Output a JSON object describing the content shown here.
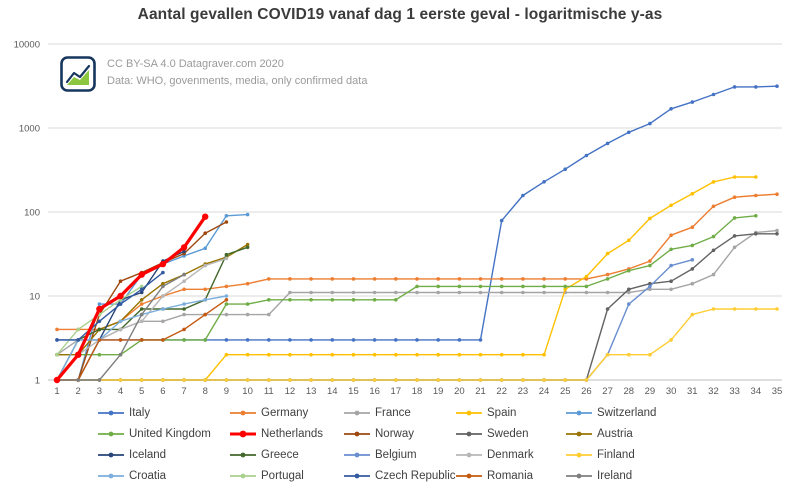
{
  "page": {
    "title": "Aantal gevallen COVID19 vanaf dag 1 eerste geval - logaritmische y-as"
  },
  "watermark": {
    "logo": "datagraver-logo",
    "license_line": "CC BY-SA 4.0  Datagraver.com 2020",
    "source_line": "Data: WHO, govenments, media, only confirmed data"
  },
  "chart_data": {
    "type": "line",
    "title": "Aantal gevallen COVID19 vanaf dag 1 eerste geval - logaritmische y-as",
    "xlabel": "",
    "ylabel": "",
    "y_scale": "log",
    "grid": "horizontal",
    "legend_position": "bottom",
    "x_range": [
      1,
      35
    ],
    "y_range": [
      1,
      10000
    ],
    "y_ticks": [
      1,
      10,
      100,
      1000,
      10000
    ],
    "x_ticks": [
      1,
      2,
      3,
      4,
      5,
      6,
      7,
      8,
      9,
      10,
      11,
      12,
      13,
      14,
      15,
      16,
      17,
      18,
      19,
      20,
      21,
      22,
      23,
      24,
      25,
      26,
      27,
      28,
      29,
      30,
      31,
      32,
      33,
      34,
      35
    ],
    "series": [
      {
        "name": "Italy",
        "color": "#4472C4",
        "emphasis": false,
        "values": [
          3,
          3,
          3,
          3,
          3,
          3,
          3,
          3,
          3,
          3,
          3,
          3,
          3,
          3,
          3,
          3,
          3,
          3,
          3,
          3,
          3,
          79,
          157,
          229,
          323,
          470,
          655,
          889,
          1128,
          1694,
          2036,
          2502,
          3089,
          3089,
          3144
        ]
      },
      {
        "name": "Germany",
        "color": "#ED7D31",
        "emphasis": false,
        "values": [
          4,
          4,
          4,
          5,
          8,
          10,
          12,
          12,
          13,
          14,
          16,
          16,
          16,
          16,
          16,
          16,
          16,
          16,
          16,
          16,
          16,
          16,
          16,
          16,
          16,
          16,
          18,
          21,
          26,
          53,
          66,
          117,
          150,
          157,
          163
        ]
      },
      {
        "name": "France",
        "color": "#A5A5A5",
        "emphasis": false,
        "values": [
          2,
          3,
          3,
          4,
          5,
          5,
          6,
          6,
          6,
          6,
          6,
          11,
          11,
          11,
          11,
          11,
          11,
          11,
          11,
          11,
          11,
          11,
          11,
          11,
          11,
          11,
          11,
          11,
          12,
          12,
          14,
          18,
          38,
          57,
          60
        ]
      },
      {
        "name": "Spain",
        "color": "#FFC000",
        "emphasis": false,
        "values": [
          1,
          1,
          1,
          1,
          1,
          1,
          1,
          1,
          2,
          2,
          2,
          2,
          2,
          2,
          2,
          2,
          2,
          2,
          2,
          2,
          2,
          2,
          2,
          2,
          12,
          17,
          32,
          46,
          84,
          120,
          165,
          228,
          261,
          261
        ]
      },
      {
        "name": "Switzerland",
        "color": "#5B9BD5",
        "emphasis": false,
        "values": [
          1,
          1,
          8,
          8,
          18,
          24,
          30,
          37,
          90,
          93
        ]
      },
      {
        "name": "United Kingdom",
        "color": "#70AD47",
        "emphasis": false,
        "values": [
          2,
          2,
          2,
          2,
          3,
          3,
          3,
          3,
          8,
          8,
          9,
          9,
          9,
          9,
          9,
          9,
          9,
          13,
          13,
          13,
          13,
          13,
          13,
          13,
          13,
          13,
          16,
          20,
          23,
          36,
          40,
          51,
          85,
          90
        ]
      },
      {
        "name": "Netherlands",
        "color": "#FF0000",
        "emphasis": true,
        "values": [
          1,
          2,
          7,
          10,
          18,
          24,
          38,
          88
        ]
      },
      {
        "name": "Norway",
        "color": "#9E480E",
        "emphasis": false,
        "values": [
          1,
          1,
          6,
          15,
          19,
          25,
          32,
          56,
          76
        ]
      },
      {
        "name": "Sweden",
        "color": "#636363",
        "emphasis": false,
        "values": [
          1,
          1,
          1,
          1,
          1,
          1,
          1,
          1,
          1,
          1,
          1,
          1,
          1,
          1,
          1,
          1,
          1,
          1,
          1,
          1,
          1,
          1,
          1,
          1,
          1,
          1,
          7,
          12,
          14,
          15,
          21,
          35,
          52,
          55,
          55
        ]
      },
      {
        "name": "Austria",
        "color": "#997300",
        "emphasis": false,
        "values": [
          2,
          2,
          4,
          5,
          9,
          14,
          18,
          24,
          29,
          41
        ]
      },
      {
        "name": "Iceland",
        "color": "#264478",
        "emphasis": false,
        "values": [
          1,
          1,
          3,
          9,
          11,
          26,
          34
        ]
      },
      {
        "name": "Greece",
        "color": "#43682B",
        "emphasis": false,
        "values": [
          1,
          3,
          4,
          4,
          7,
          7,
          7,
          9,
          31,
          38
        ]
      },
      {
        "name": "Belgium",
        "color": "#698ED0",
        "emphasis": false,
        "values": [
          1,
          1,
          1,
          1,
          1,
          1,
          1,
          1,
          1,
          1,
          1,
          1,
          1,
          1,
          1,
          1,
          1,
          1,
          1,
          1,
          1,
          1,
          1,
          1,
          1,
          1,
          2,
          8,
          13,
          23,
          27
        ]
      },
      {
        "name": "Denmark",
        "color": "#B7B7B7",
        "emphasis": false,
        "values": [
          1,
          2,
          3,
          4,
          5,
          10,
          15,
          23,
          28
        ]
      },
      {
        "name": "Finland",
        "color": "#FFCD33",
        "emphasis": false,
        "values": [
          1,
          1,
          1,
          1,
          1,
          1,
          1,
          1,
          1,
          1,
          1,
          1,
          1,
          1,
          1,
          1,
          1,
          1,
          1,
          1,
          1,
          1,
          1,
          1,
          1,
          1,
          2,
          2,
          2,
          3,
          6,
          7,
          7,
          7,
          7
        ]
      },
      {
        "name": "Croatia",
        "color": "#7CAFDD",
        "emphasis": false,
        "values": [
          1,
          3,
          3,
          5,
          6,
          7,
          8,
          9,
          10
        ]
      },
      {
        "name": "Portugal",
        "color": "#A9D18E",
        "emphasis": false,
        "values": [
          2,
          4,
          6,
          9,
          13
        ]
      },
      {
        "name": "Czech Republic",
        "color": "#335AA1",
        "emphasis": false,
        "values": [
          3,
          3,
          5,
          8,
          12,
          19
        ]
      },
      {
        "name": "Romania",
        "color": "#C45911",
        "emphasis": false,
        "values": [
          1,
          1,
          3,
          3,
          3,
          3,
          4,
          6,
          9
        ]
      },
      {
        "name": "Ireland",
        "color": "#7F7F7F",
        "emphasis": false,
        "values": [
          1,
          1,
          1,
          2,
          6,
          13,
          18
        ]
      }
    ]
  }
}
